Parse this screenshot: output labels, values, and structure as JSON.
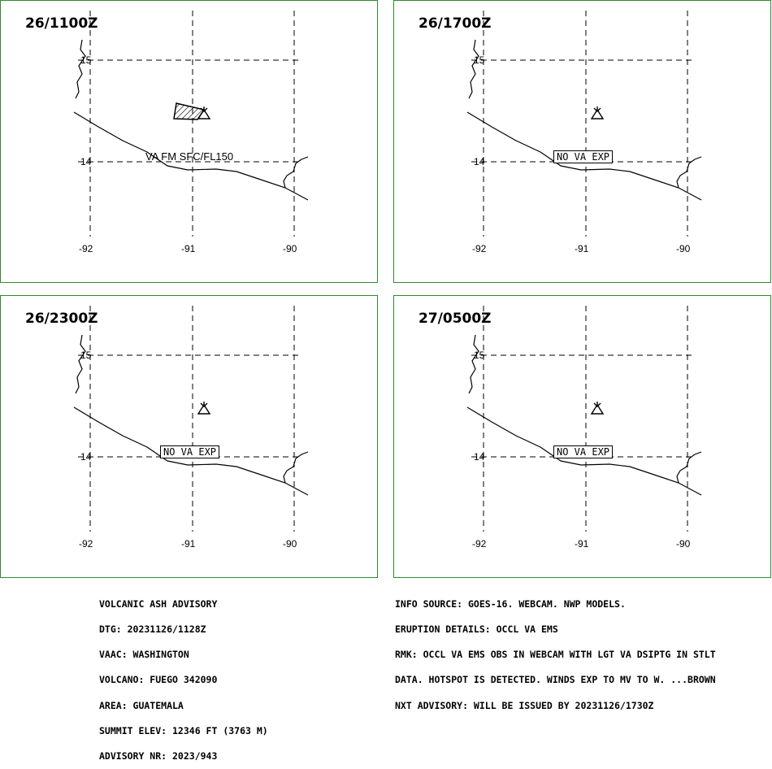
{
  "panels": [
    {
      "time": "26/1100Z",
      "annotation": "VA FM SFC/FL150",
      "annotation_type": "text",
      "ash_polygon": true
    },
    {
      "time": "26/1700Z",
      "annotation": "NO VA EXP",
      "annotation_type": "box",
      "ash_polygon": false
    },
    {
      "time": "26/2300Z",
      "annotation": "NO VA EXP",
      "annotation_type": "box",
      "ash_polygon": false
    },
    {
      "time": "27/0500Z",
      "annotation": "NO VA EXP",
      "annotation_type": "box",
      "ash_polygon": false
    }
  ],
  "grid": {
    "lat_labels": [
      "15",
      "14"
    ],
    "lon_labels": [
      "-92",
      "-91",
      "-90"
    ]
  },
  "advisory_left": [
    "VOLCANIC ASH ADVISORY",
    "DTG: 20231126/1128Z",
    "VAAC: WASHINGTON",
    "VOLCANO: FUEGO 342090",
    "AREA: GUATEMALA",
    "SUMMIT ELEV: 12346 FT (3763 M)",
    "ADVISORY NR: 2023/943"
  ],
  "advisory_right": [
    "INFO SOURCE: GOES-16. WEBCAM. NWP MODELS.",
    "ERUPTION DETAILS: OCCL VA EMS",
    "RMK: OCCL VA EMS OBS IN WEBCAM WITH LGT VA DSIPTG IN STLT",
    "DATA. HOTSPOT IS DETECTED. WINDS EXP TO MV TO W. ...BROWN",
    "NXT ADVISORY: WILL BE ISSUED BY 20231126/1730Z"
  ],
  "colors": {
    "panel_border": "#2e8b2e",
    "lines": "#000000"
  },
  "icons": {
    "volcano": "volcano-icon"
  }
}
